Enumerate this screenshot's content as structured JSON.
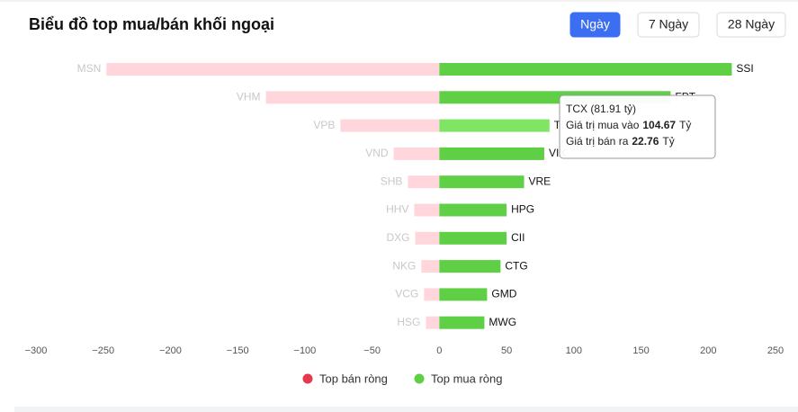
{
  "chart_data": {
    "type": "diverging-bar",
    "title": "Biểu đồ top mua/bán khối ngoại",
    "buttons": [
      "Ngày",
      "7 Ngày",
      "28 Ngày"
    ],
    "xlim": [
      -300,
      250
    ],
    "xticks": [
      {
        "value": -300,
        "label": "−300"
      },
      {
        "value": -250,
        "label": "−250"
      },
      {
        "value": -200,
        "label": "−200"
      },
      {
        "value": -150,
        "label": "−150"
      },
      {
        "value": -100,
        "label": "−100"
      },
      {
        "value": -50,
        "label": "−50"
      },
      0,
      50,
      100,
      150,
      200,
      250
    ],
    "series": [
      {
        "name": "Top bán ròng",
        "color": "#ffd6dc",
        "legend_color": "#e8384f",
        "labels": [
          "MSN",
          "VHM",
          "VPB",
          "VND",
          "SHB",
          "HHV",
          "DXG",
          "NKG",
          "VCG",
          "HSG"
        ],
        "values": [
          -247.6,
          -129,
          -73.6,
          -34,
          -23.4,
          -18.7,
          -18,
          -13.4,
          -11.4,
          -10
        ]
      },
      {
        "name": "Top mua ròng",
        "color": "#5fcf45",
        "legend_color": "#5fcf45",
        "highlight_color": "#80e565",
        "labels": [
          "SSI",
          "FPT",
          "TCX",
          "VIX",
          "VRE",
          "HPG",
          "CII",
          "CTG",
          "GMD",
          "MWG"
        ],
        "values": [
          217.5,
          172,
          81.91,
          78,
          63,
          50,
          50,
          45.5,
          35.5,
          33.5
        ]
      }
    ],
    "tooltip": {
      "title": "TCX (81.91 tỷ)",
      "lines": [
        {
          "text": "Giá trị mua vào",
          "value": "104.67",
          "unit": "Tỷ"
        },
        {
          "text": "Giá trị bán ra",
          "value": "22.76",
          "unit": "Tỷ"
        }
      ]
    }
  }
}
